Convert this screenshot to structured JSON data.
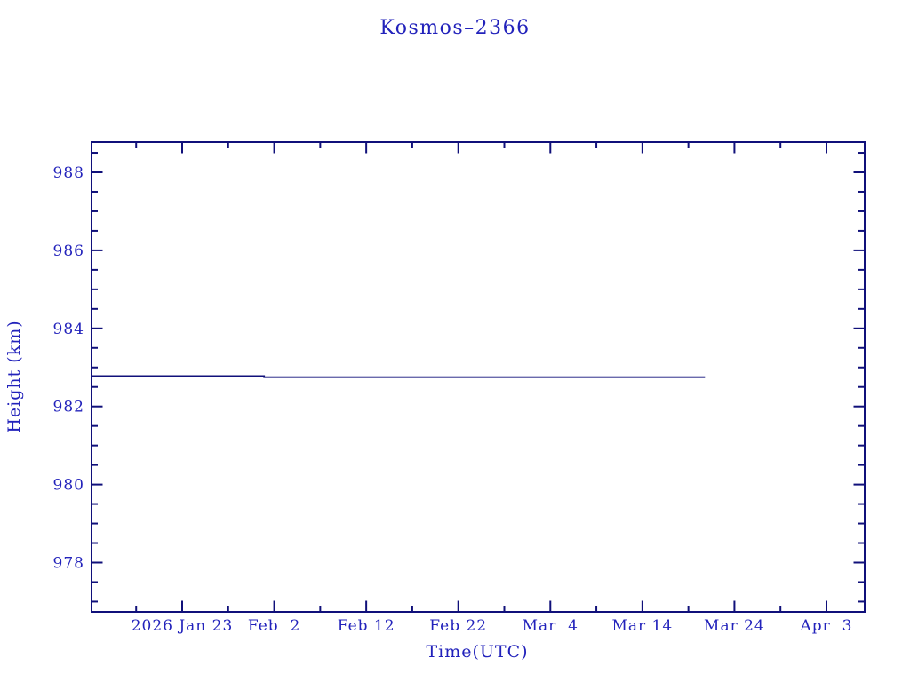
{
  "page": {
    "background": "#ffffff"
  },
  "colors": {
    "frame": "#10107a",
    "plot_line": "#10107a",
    "text": "#2222bb"
  },
  "chart_data": {
    "type": "line",
    "title": "Kosmos–2366",
    "xlabel": "Time(UTC)",
    "ylabel": "Height (km)",
    "grid": false,
    "legend": null,
    "x_axis": {
      "unit": "date (UTC)",
      "range_days_from_jan23_2026": [
        -9.85,
        74.15
      ],
      "major_ticks": [
        {
          "label": "2026 Jan 23",
          "day": 0
        },
        {
          "label": "Feb  2",
          "day": 10
        },
        {
          "label": "Feb 12",
          "day": 20
        },
        {
          "label": "Feb 22",
          "day": 30
        },
        {
          "label": "Mar  4",
          "day": 40
        },
        {
          "label": "Mar 14",
          "day": 50
        },
        {
          "label": "Mar 24",
          "day": 60
        },
        {
          "label": "Apr  3",
          "day": 70
        }
      ],
      "minor_tick_days": [
        -5,
        5,
        15,
        25,
        35,
        45,
        55,
        65
      ]
    },
    "y_axis": {
      "unit": "km",
      "range": [
        976.7,
        988.8
      ],
      "major_ticks": [
        978,
        980,
        982,
        984,
        986,
        988
      ],
      "minor_step": 0.5
    },
    "series": [
      {
        "name": "height",
        "points": [
          {
            "date": "2026-01-13",
            "day": -9.85,
            "height_km": 982.78
          },
          {
            "date": "2026-02-01",
            "day": 8.9,
            "height_km": 982.78
          },
          {
            "date": "2026-02-01",
            "day": 8.9,
            "height_km": 982.75
          },
          {
            "date": "2026-03-21",
            "day": 56.8,
            "height_km": 982.75
          }
        ]
      }
    ]
  }
}
